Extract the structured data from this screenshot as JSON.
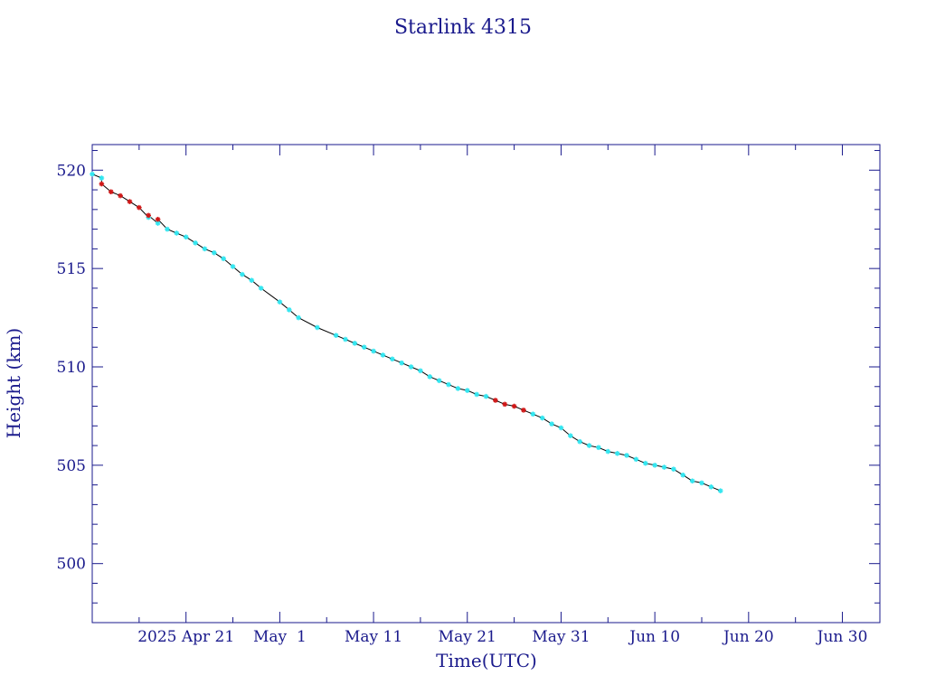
{
  "chart_data": {
    "type": "scatter",
    "title": "Starlink 4315",
    "xlabel": "Time(UTC)",
    "ylabel": "Height (km)",
    "x_type": "date",
    "xlim": [
      "2025-04-11",
      "2025-07-04"
    ],
    "ylim": [
      497,
      521.3
    ],
    "x_ticks": [
      {
        "date": "2025-04-21",
        "label": "2025 Apr 21"
      },
      {
        "date": "2025-05-01",
        "label": "May  1"
      },
      {
        "date": "2025-05-11",
        "label": "May 11"
      },
      {
        "date": "2025-05-21",
        "label": "May 21"
      },
      {
        "date": "2025-05-31",
        "label": "May 31"
      },
      {
        "date": "2025-06-10",
        "label": "Jun 10"
      },
      {
        "date": "2025-06-20",
        "label": "Jun 20"
      },
      {
        "date": "2025-06-30",
        "label": "Jun 30"
      }
    ],
    "y_ticks": [
      500,
      505,
      510,
      515,
      520
    ],
    "grid": false,
    "colors": {
      "axis": "#1a1a8c",
      "line": "#000000",
      "primary_marker": "#33e6f0",
      "secondary_marker": "#d01818"
    },
    "series": [
      {
        "marker_color": "#33e6f0",
        "points": [
          [
            "2025-04-11",
            519.8
          ],
          [
            "2025-04-12",
            519.6
          ],
          [
            "2025-04-17",
            517.6
          ],
          [
            "2025-04-18",
            517.3
          ],
          [
            "2025-04-19",
            517.0
          ],
          [
            "2025-04-20",
            516.8
          ],
          [
            "2025-04-21",
            516.6
          ],
          [
            "2025-04-22",
            516.3
          ],
          [
            "2025-04-23",
            516.0
          ],
          [
            "2025-04-24",
            515.8
          ],
          [
            "2025-04-25",
            515.5
          ],
          [
            "2025-04-26",
            515.1
          ],
          [
            "2025-04-27",
            514.7
          ],
          [
            "2025-04-28",
            514.4
          ],
          [
            "2025-04-29",
            514.0
          ],
          [
            "2025-05-01",
            513.3
          ],
          [
            "2025-05-02",
            512.9
          ],
          [
            "2025-05-03",
            512.5
          ],
          [
            "2025-05-05",
            512.0
          ],
          [
            "2025-05-07",
            511.6
          ],
          [
            "2025-05-08",
            511.4
          ],
          [
            "2025-05-09",
            511.2
          ],
          [
            "2025-05-10",
            511.0
          ],
          [
            "2025-05-11",
            510.8
          ],
          [
            "2025-05-12",
            510.6
          ],
          [
            "2025-05-13",
            510.4
          ],
          [
            "2025-05-14",
            510.2
          ],
          [
            "2025-05-15",
            510.0
          ],
          [
            "2025-05-16",
            509.8
          ],
          [
            "2025-05-17",
            509.5
          ],
          [
            "2025-05-18",
            509.3
          ],
          [
            "2025-05-19",
            509.1
          ],
          [
            "2025-05-20",
            508.9
          ],
          [
            "2025-05-21",
            508.8
          ],
          [
            "2025-05-22",
            508.6
          ],
          [
            "2025-05-23",
            508.5
          ],
          [
            "2025-05-28",
            507.6
          ],
          [
            "2025-05-29",
            507.4
          ],
          [
            "2025-05-30",
            507.1
          ],
          [
            "2025-05-31",
            506.9
          ],
          [
            "2025-06-01",
            506.5
          ],
          [
            "2025-06-02",
            506.2
          ],
          [
            "2025-06-03",
            506.0
          ],
          [
            "2025-06-04",
            505.9
          ],
          [
            "2025-06-05",
            505.7
          ],
          [
            "2025-06-06",
            505.6
          ],
          [
            "2025-06-07",
            505.5
          ],
          [
            "2025-06-08",
            505.3
          ],
          [
            "2025-06-09",
            505.1
          ],
          [
            "2025-06-10",
            505.0
          ],
          [
            "2025-06-11",
            504.9
          ],
          [
            "2025-06-12",
            504.8
          ],
          [
            "2025-06-13",
            504.5
          ],
          [
            "2025-06-14",
            504.2
          ],
          [
            "2025-06-15",
            504.1
          ],
          [
            "2025-06-16",
            503.9
          ],
          [
            "2025-06-17",
            503.7
          ]
        ]
      },
      {
        "marker_color": "#d01818",
        "points": [
          [
            "2025-04-12",
            519.3
          ],
          [
            "2025-04-13",
            518.9
          ],
          [
            "2025-04-14",
            518.7
          ],
          [
            "2025-04-15",
            518.4
          ],
          [
            "2025-04-16",
            518.1
          ],
          [
            "2025-04-17",
            517.7
          ],
          [
            "2025-04-18",
            517.5
          ],
          [
            "2025-05-24",
            508.3
          ],
          [
            "2025-05-25",
            508.1
          ],
          [
            "2025-05-26",
            508.0
          ],
          [
            "2025-05-27",
            507.8
          ]
        ]
      }
    ]
  }
}
